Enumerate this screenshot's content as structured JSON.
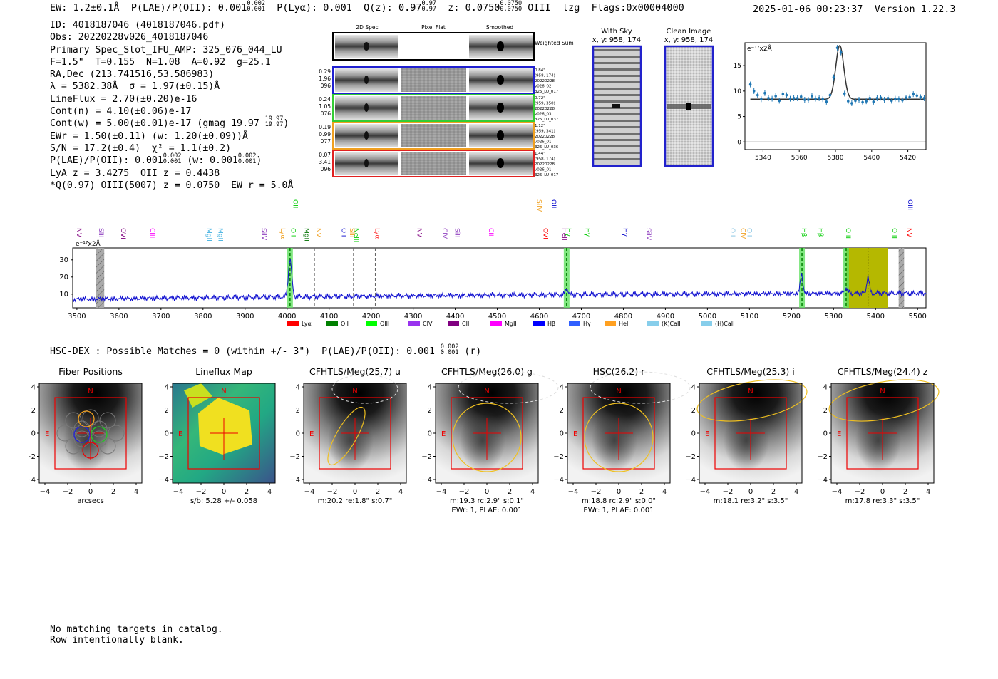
{
  "header": {
    "ew": "EW: 1.2±0.1Å",
    "plae_label": "P(LAE)/P(OII): 0.001",
    "plae_hi": "0.002",
    "plae_lo": "0.001",
    "plya": "P(Lyα): 0.001",
    "qz_label": "Q(z): 0.97",
    "qz_hi": "0.97",
    "qz_lo": "0.97",
    "z_label": "z: 0.0750",
    "z_hi": "0.0750",
    "z_lo": "0.0750",
    "line_name": "OIII",
    "method": "lzg",
    "flags": "Flags:0x00004000",
    "timestamp": "2025-01-06 00:23:37",
    "version": "Version 1.22.3"
  },
  "info": {
    "id": "ID: 4018187046 (4018187046.pdf)",
    "obs": "Obs: 20220228v026_4018187046",
    "primary": "Primary Spec_Slot_IFU_AMP: 325_076_044_LU",
    "fparams": "F=1.5\"  T=0.155  N=1.08  A=0.92  g=25.1",
    "radec": "RA,Dec (213.741516,53.586983)",
    "lambda": "λ = 5382.38Å  σ = 1.97(±0.15)Å",
    "lineflux": "LineFlux = 2.70(±0.20)e-16",
    "contn": "Cont(n) = 4.10(±0.06)e-17",
    "contw": "Cont(w) = 5.00(±0.01)e-17 (gmag 19.97",
    "contw_hi": "19.97",
    "contw_lo": "19.97",
    "ewr": "EWr = 1.50(±0.11) (w: 1.20(±0.09))Å",
    "sn": "S/N = 17.2(±0.4)  χ² = 1.1(±0.2)",
    "plae": "P(LAE)/P(OII): 0.001",
    "plae_hi": "0.002",
    "plae_lo": "0.001",
    "plae_w": "(w: 0.001",
    "plae_w_hi": "0.002",
    "plae_w_lo": "0.001",
    "lya": "LyA z = 3.4275  OII z = 0.4438",
    "q": "*Q(0.97) OIII(5007) z = 0.0750  EW r = 5.0Å"
  },
  "cutouts": {
    "col_headers": [
      "2D Spec",
      "Pixel Flat",
      "Smoothed"
    ],
    "weighted_label": "Weighted Sum",
    "rows": [
      {
        "left": [
          "0.29",
          "1.96",
          "096"
        ],
        "right": [
          "0.84\"",
          "(958, 174)",
          "20220228",
          "v026_02",
          "325_LU_017"
        ],
        "color": "#1f1fd0"
      },
      {
        "left": [
          "0.24",
          "1.05",
          "076"
        ],
        "right": [
          "0.72\"",
          "(959, 350)",
          "20220228",
          "v026_03",
          "325_LU_037"
        ],
        "color": "#33cc33"
      },
      {
        "left": [
          "0.19",
          "0.99",
          "077"
        ],
        "right": [
          "1.12\"",
          "(959, 341)",
          "20220228",
          "v026_01",
          "325_LU_036"
        ],
        "color": "#f0a020"
      },
      {
        "left": [
          "0.07",
          "3.41",
          "096"
        ],
        "right": [
          "1.44\"",
          "(958, 174)",
          "20220228",
          "v026_01",
          "325_LU_017"
        ],
        "color": "#e02020"
      }
    ],
    "with_sky_title": "With Sky",
    "with_sky_xy": "x, y: 958, 174",
    "clean_title": "Clean Image",
    "clean_xy": "x, y: 958, 174"
  },
  "zoom": {
    "unit": "e⁻¹⁷x2Å",
    "yticks": [
      "15",
      "10",
      "5",
      "0"
    ],
    "xticks": [
      "5340",
      "5360",
      "5380",
      "5400",
      "5420"
    ]
  },
  "full_spec": {
    "unit": "e⁻¹⁷x2Å",
    "yticks": [
      "30",
      "20",
      "10"
    ],
    "xticks": [
      "3500",
      "3600",
      "3700",
      "3800",
      "3900",
      "4000",
      "4100",
      "4200",
      "4300",
      "4400",
      "4500",
      "4600",
      "4700",
      "4800",
      "4900",
      "5000",
      "5100",
      "5200",
      "5300",
      "5400",
      "5500"
    ],
    "line_labels": [
      {
        "t": "NV",
        "c": "#800080",
        "w": 3500
      },
      {
        "t": "SiII",
        "c": "#9040c0",
        "w": 3553
      },
      {
        "t": "OVI",
        "c": "#800080",
        "w": 3605
      },
      {
        "t": "CIII",
        "c": "#ff00ff",
        "w": 3675
      },
      {
        "t": "MgII",
        "c": "#40b0e0",
        "w": 3810
      },
      {
        "t": "MgII",
        "c": "#40b0e0",
        "w": 3837
      },
      {
        "t": "SiIV",
        "c": "#9040c0",
        "w": 3940
      },
      {
        "t": "Lyα",
        "c": "#f0a020",
        "w": 3985
      },
      {
        "t": "OII",
        "c": "#00cc00",
        "w": 4010
      },
      {
        "t": "MgII",
        "c": "#007000",
        "w": 4042
      },
      {
        "t": "NV",
        "c": "#f0a020",
        "w": 4070
      },
      {
        "t": "OII",
        "c": "#0000cc",
        "w": 4130
      },
      {
        "t": "NeIII",
        "c": "#00cc00",
        "w": 4160
      },
      {
        "t": "SiII",
        "c": "#f0a020",
        "w": 4150
      },
      {
        "t": "Lyα",
        "c": "#ff3030",
        "w": 4210
      },
      {
        "t": "NV",
        "c": "#800080",
        "w": 4310
      },
      {
        "t": "CIV",
        "c": "#9040c0",
        "w": 4370
      },
      {
        "t": "SiII",
        "c": "#9040c0",
        "w": 4400
      },
      {
        "t": "CII",
        "c": "#ff00ff",
        "w": 4480
      },
      {
        "t": "OVI",
        "c": "#ff0000",
        "w": 4610
      },
      {
        "t": "HeII",
        "c": "#800080",
        "w": 4655
      },
      {
        "t": "Hγ",
        "c": "#00cc00",
        "w": 4665
      },
      {
        "t": "Hγ",
        "c": "#00cc00",
        "w": 4710
      },
      {
        "t": "Hγ",
        "c": "#0000cc",
        "w": 4800
      },
      {
        "t": "SiIV",
        "c": "#9040c0",
        "w": 4855
      },
      {
        "t": "OII",
        "c": "#80c0e0",
        "w": 5055
      },
      {
        "t": "CIV",
        "c": "#f0a020",
        "w": 5080
      },
      {
        "t": "OII",
        "c": "#80c0e0",
        "w": 5095
      },
      {
        "t": "Hβ",
        "c": "#00cc00",
        "w": 5225
      },
      {
        "t": "Hβ",
        "c": "#00cc00",
        "w": 5265
      },
      {
        "t": "OIII",
        "c": "#00cc00",
        "w": 5330
      },
      {
        "t": "OIII",
        "c": "#00cc00",
        "w": 5440
      },
      {
        "t": "NV",
        "c": "#ff0000",
        "w": 5475
      }
    ],
    "upper_labels": [
      {
        "t": "OII",
        "c": "#00cc00",
        "w": 4015
      },
      {
        "t": "SiIV",
        "c": "#f0a020",
        "w": 4595
      },
      {
        "t": "OII",
        "c": "#0000cc",
        "w": 4630
      },
      {
        "t": "OIII",
        "c": "#0000cc",
        "w": 5478
      }
    ],
    "legend": [
      {
        "t": "Lyα",
        "c": "#ff0000"
      },
      {
        "t": "OII",
        "c": "#008000"
      },
      {
        "t": "OIII",
        "c": "#00ff00"
      },
      {
        "t": "CIV",
        "c": "#9933ee"
      },
      {
        "t": "CIII",
        "c": "#800080"
      },
      {
        "t": "MgII",
        "c": "#ff00ff"
      },
      {
        "t": "Hβ",
        "c": "#0000ff"
      },
      {
        "t": "Hγ",
        "c": "#3060ff"
      },
      {
        "t": "HeII",
        "c": "#ffa020"
      },
      {
        "t": "(K)CaII",
        "c": "#87ceeb"
      },
      {
        "t": "(H)CaII",
        "c": "#87ceeb"
      }
    ]
  },
  "hsc": {
    "line": "HSC-DEX : Possible Matches = 0 (within +/- 3\")  P(LAE)/P(OII): 0.001",
    "hi": "0.002",
    "lo": "0.001",
    "band": "(r)"
  },
  "panels": [
    {
      "title": "Fiber Positions",
      "sub1": "arcsecs",
      "sub2": ""
    },
    {
      "title": "Lineflux Map",
      "sub1": "s/b: 5.28 +/- 0.058",
      "sub2": ""
    },
    {
      "title": "CFHTLS/Meg(25.7) u",
      "sub1": "m:20.2  re:1.8\"  s:0.7\"",
      "sub2": ""
    },
    {
      "title": "CFHTLS/Meg(26.0) g",
      "sub1": "m:19.3 rc:2.9\"  s:0.1\"",
      "sub2": "EWr: 1, PLAE: 0.001"
    },
    {
      "title": "HSC(26.2) r",
      "sub1": "m:18.8 rc:2.9\"  s:0.0\"",
      "sub2": "EWr: 1, PLAE: 0.001"
    },
    {
      "title": "CFHTLS/Meg(25.3) i",
      "sub1": "m:18.1  re:3.2\"  s:3.5\"",
      "sub2": ""
    },
    {
      "title": "CFHTLS/Meg(24.4) z",
      "sub1": "m:17.8  re:3.3\"  s:3.5\"",
      "sub2": ""
    }
  ],
  "panel_axes": {
    "yticks": [
      "4",
      "2",
      "0",
      "−2",
      "−4"
    ],
    "xticks": [
      "−4",
      "−2",
      "0",
      "2",
      "4"
    ],
    "n": "N",
    "e": "E"
  },
  "footer": {
    "line1": "No matching targets in catalog.",
    "line2": "Row intentionally blank."
  },
  "chart_data": [
    {
      "type": "line",
      "xlim": [
        5330,
        5430
      ],
      "ylim": [
        -1.5,
        19.5
      ],
      "x": [
        5333,
        5335,
        5337,
        5339,
        5341,
        5343,
        5345,
        5347,
        5349,
        5351,
        5353,
        5355,
        5357,
        5359,
        5361,
        5363,
        5365,
        5367,
        5369,
        5371,
        5373,
        5375,
        5377,
        5379,
        5381,
        5383,
        5385,
        5387,
        5389,
        5391,
        5393,
        5395,
        5397,
        5399,
        5401,
        5403,
        5405,
        5407,
        5409,
        5411,
        5413,
        5415,
        5417,
        5419,
        5421,
        5423,
        5425,
        5427,
        5429
      ],
      "y": [
        11.3,
        10.0,
        9.2,
        8.4,
        9.6,
        8.6,
        8.5,
        9.0,
        8.1,
        9.4,
        9.2,
        8.5,
        8.6,
        8.6,
        8.9,
        8.3,
        8.3,
        9.0,
        8.5,
        8.6,
        8.4,
        7.9,
        9.2,
        12.7,
        18.5,
        17.6,
        9.5,
        8.0,
        7.6,
        8.1,
        8.3,
        7.8,
        8.0,
        8.6,
        7.9,
        8.6,
        8.7,
        8.3,
        8.6,
        8.1,
        8.5,
        8.4,
        8.2,
        8.7,
        8.8,
        9.4,
        9.1,
        8.8,
        8.6
      ]
    }
  ]
}
